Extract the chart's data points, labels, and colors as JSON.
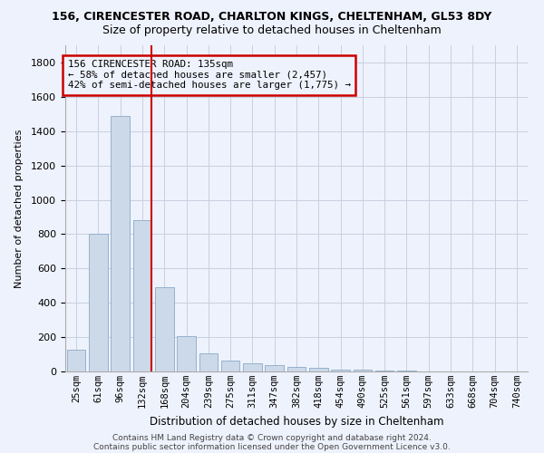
{
  "title1": "156, CIRENCESTER ROAD, CHARLTON KINGS, CHELTENHAM, GL53 8DY",
  "title2": "Size of property relative to detached houses in Cheltenham",
  "xlabel": "Distribution of detached houses by size in Cheltenham",
  "ylabel": "Number of detached properties",
  "footer1": "Contains HM Land Registry data © Crown copyright and database right 2024.",
  "footer2": "Contains public sector information licensed under the Open Government Licence v3.0.",
  "categories": [
    "25sqm",
    "61sqm",
    "96sqm",
    "132sqm",
    "168sqm",
    "204sqm",
    "239sqm",
    "275sqm",
    "311sqm",
    "347sqm",
    "382sqm",
    "418sqm",
    "454sqm",
    "490sqm",
    "525sqm",
    "561sqm",
    "597sqm",
    "633sqm",
    "668sqm",
    "704sqm",
    "740sqm"
  ],
  "values": [
    125,
    800,
    1490,
    880,
    490,
    205,
    105,
    65,
    45,
    35,
    27,
    22,
    12,
    8,
    5,
    3,
    2,
    0,
    0,
    0,
    0
  ],
  "bar_color": "#ccd9e8",
  "bar_edge_color": "#8aaac8",
  "highlight_index": 3,
  "highlight_color": "#cc0000",
  "annotation_text": "156 CIRENCESTER ROAD: 135sqm\n← 58% of detached houses are smaller (2,457)\n42% of semi-detached houses are larger (1,775) →",
  "annotation_box_color": "#cc0000",
  "ylim": [
    0,
    1900
  ],
  "yticks": [
    0,
    200,
    400,
    600,
    800,
    1000,
    1200,
    1400,
    1600,
    1800
  ],
  "background_color": "#eef2fc",
  "grid_color": "#c8cfe0",
  "title1_fontsize": 9,
  "title2_fontsize": 9
}
